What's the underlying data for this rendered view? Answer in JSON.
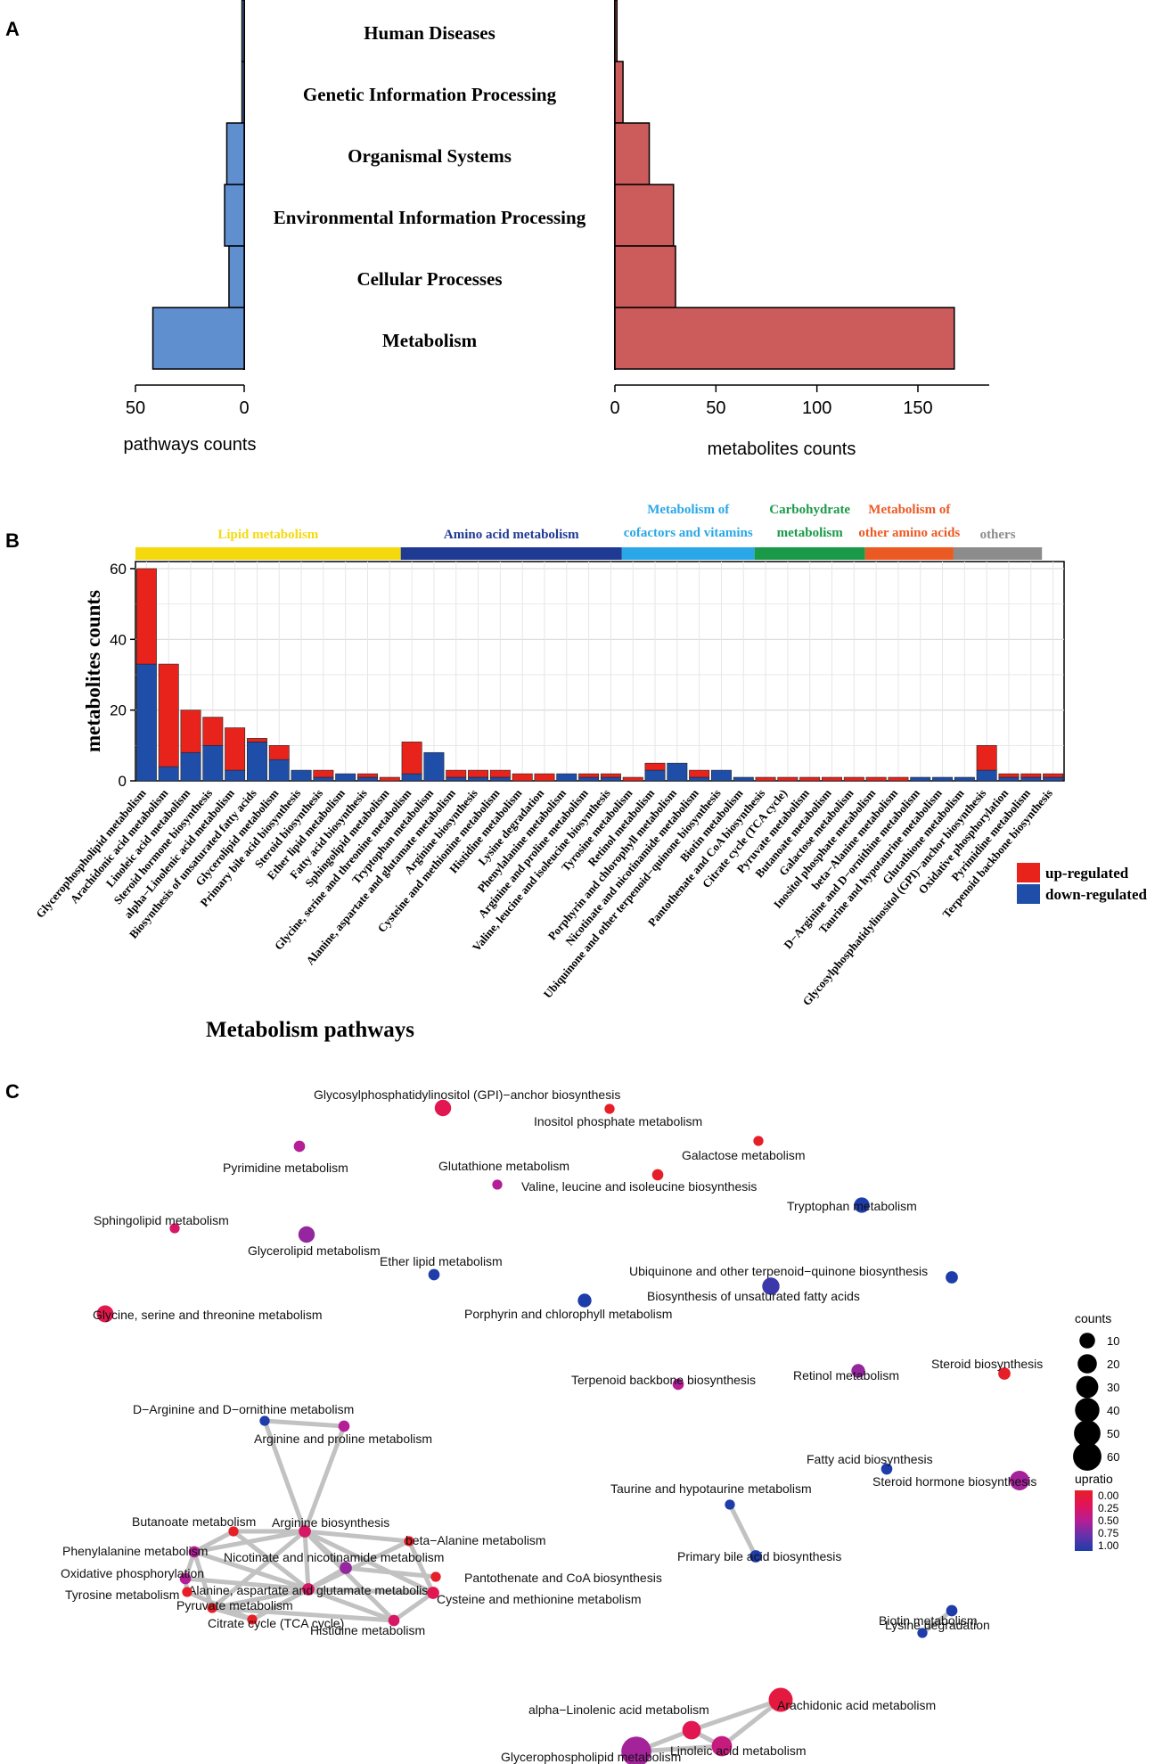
{
  "colors": {
    "blue_bar": "#5f8fcf",
    "red_bar": "#cc5b5b",
    "up": "#e8231c",
    "down": "#1f4ea8",
    "lipid": "#f5d90f",
    "amino": "#1f3a93",
    "cofactors": "#29a7e6",
    "carbohydrate": "#1a9a48",
    "other_amino": "#ec5a24",
    "others": "#8c8c8c",
    "edge": "#c2c2c2"
  },
  "chart_data": [
    {
      "panel": "A",
      "type": "bar",
      "orientation": "horizontal-mirrored",
      "categories": [
        "Human Diseases",
        "Genetic Information Processing",
        "Organismal Systems",
        "Environmental Information Processing",
        "Cellular Processes",
        "Metabolism"
      ],
      "series": [
        {
          "name": "pathways counts",
          "values": [
            1,
            1,
            8,
            9,
            7,
            42
          ],
          "xlim": [
            50,
            0
          ],
          "ticks": [
            "50",
            "0"
          ],
          "xlabel": "pathways counts"
        },
        {
          "name": "metabolites counts",
          "values": [
            1,
            4,
            17,
            29,
            30,
            168
          ],
          "xlim": [
            0,
            180
          ],
          "ticks": [
            "0",
            "50",
            "100",
            "150"
          ],
          "xlabel": "metabolites counts"
        }
      ]
    },
    {
      "panel": "B",
      "type": "bar",
      "stacked": true,
      "ylabel": "metabolites counts",
      "xlabel": "Metabolism pathways",
      "ylim": [
        0,
        62
      ],
      "yticks": [
        "0",
        "20",
        "40",
        "60"
      ],
      "legend": [
        "up-regulated",
        "down-regulated"
      ],
      "groups": [
        {
          "label": "Lipid metabolism",
          "label_lines": [
            "Lipid metabolism"
          ],
          "count": 12,
          "color_key": "lipid"
        },
        {
          "label": "Amino acid metabolism",
          "label_lines": [
            "Amino acid metabolism"
          ],
          "count": 10,
          "color_key": "amino"
        },
        {
          "label": "Metabolism of cofactors and vitamins",
          "label_lines": [
            "Metabolism of",
            "cofactors and vitamins"
          ],
          "count": 6,
          "color_key": "cofactors"
        },
        {
          "label": "Carbohydrate metabolism",
          "label_lines": [
            "Carbohydrate",
            "metabolism"
          ],
          "count": 5,
          "color_key": "carbohydrate"
        },
        {
          "label": "Metabolism of other amino acids",
          "label_lines": [
            "Metabolism of",
            "other amino acids"
          ],
          "count": 4,
          "color_key": "other_amino"
        },
        {
          "label": "others",
          "label_lines": [
            "others"
          ],
          "count": 4,
          "color_key": "others"
        }
      ],
      "categories": [
        "Glycerophospholipid metabolism",
        "Arachidonic acid metabolism",
        "Linoleic acid metabolism",
        "Steroid hormone biosynthesis",
        "alpha−Linolenic acid metabolism",
        "Biosynthesis of unsaturated fatty acids",
        "Glycerolipid metabolism",
        "Primary bile acid biosynthesis",
        "Steroid biosynthesis",
        "Ether lipid metabolism",
        "Fatty acid biosynthesis",
        "Sphingolipid metabolism",
        "Glycine, serine and threonine metabolism",
        "Tryptophan metabolism",
        "Alanine, aspartate and glutamate metabolism",
        "Arginine biosynthesis",
        "Cysteine and methionine metabolism",
        "Histidine metabolism",
        "Lysine degradation",
        "Phenylalanine metabolism",
        "Arginine and proline metabolism",
        "Valine, leucine and isoleucine biosynthesis",
        "Tyrosine metabolism",
        "Retinol metabolism",
        "Porphyrin and chlorophyll metabolism",
        "Nicotinate and nicotinamide metabolism",
        "Ubiquinone and other terpenoid−quinone biosynthesis",
        "Biotin metabolism",
        "Pantothenate and CoA biosynthesis",
        "Citrate cycle (TCA cycle)",
        "Pyruvate metabolism",
        "Butanoate metabolism",
        "Galactose metabolism",
        "Inositol phosphate metabolism",
        "beta−Alanine metabolism",
        "D−Arginine and D−ornithine metabolism",
        "Taurine and hypotaurine metabolism",
        "Glutathione metabolism",
        "Glycosylphosphatidylinositol (GPI)−anchor biosynthesis",
        "Oxidative phosphorylation",
        "Pyrimidine metabolism",
        "Terpenoid backbone biosynthesis"
      ],
      "series": [
        {
          "name": "down-regulated",
          "values": [
            33,
            4,
            8,
            10,
            3,
            11,
            6,
            3,
            1,
            2,
            1,
            0,
            2,
            8,
            1,
            1,
            1,
            0,
            0,
            2,
            1,
            1,
            0,
            3,
            5,
            1,
            3,
            1,
            0,
            0,
            0,
            0,
            0,
            0,
            0,
            1,
            1,
            1,
            3,
            1,
            1,
            1
          ]
        },
        {
          "name": "up-regulated",
          "values": [
            27,
            29,
            12,
            8,
            12,
            1,
            4,
            0,
            2,
            0,
            1,
            1,
            9,
            0,
            2,
            2,
            2,
            2,
            2,
            0,
            1,
            1,
            1,
            2,
            0,
            2,
            0,
            0,
            1,
            1,
            1,
            1,
            1,
            1,
            1,
            0,
            0,
            0,
            7,
            1,
            1,
            1
          ]
        }
      ]
    },
    {
      "panel": "C",
      "type": "network",
      "legend_size_title": "counts",
      "legend_size_values": [
        "10",
        "20",
        "30",
        "40",
        "50",
        "60"
      ],
      "legend_color_title": "upratio",
      "legend_color_values": [
        "0.00",
        "0.25",
        "0.50",
        "0.75",
        "1.00"
      ],
      "nodes": [
        {
          "id": 0,
          "label": "Glycosylphosphatidylinositol (GPI)−anchor biosynthesis",
          "counts": 10,
          "upratio": 0.2
        },
        {
          "id": 1,
          "label": "Inositol phosphate metabolism",
          "counts": 1,
          "upratio": 0.0
        },
        {
          "id": 2,
          "label": "Pyrimidine metabolism",
          "counts": 2,
          "upratio": 0.5
        },
        {
          "id": 3,
          "label": "Galactose metabolism",
          "counts": 1,
          "upratio": 0.0
        },
        {
          "id": 4,
          "label": "Glutathione metabolism",
          "counts": 1,
          "upratio": 0.5
        },
        {
          "id": 5,
          "label": "Valine, leucine and isoleucine biosynthesis",
          "counts": 2,
          "upratio": 0.0
        },
        {
          "id": 6,
          "label": "Tryptophan metabolism",
          "counts": 8,
          "upratio": 1.0
        },
        {
          "id": 7,
          "label": "Sphingolipid metabolism",
          "counts": 1,
          "upratio": 0.3
        },
        {
          "id": 8,
          "label": "Glycerolipid metabolism",
          "counts": 10,
          "upratio": 0.6
        },
        {
          "id": 9,
          "label": "Ether lipid metabolism",
          "counts": 2,
          "upratio": 1.0
        },
        {
          "id": 10,
          "label": "Ubiquinone and other terpenoid−quinone biosynthesis",
          "counts": 3,
          "upratio": 1.0
        },
        {
          "id": 11,
          "label": "Biosynthesis of unsaturated fatty acids",
          "counts": 12,
          "upratio": 0.9
        },
        {
          "id": 12,
          "label": "Porphyrin and chlorophyll metabolism",
          "counts": 5,
          "upratio": 1.0
        },
        {
          "id": 13,
          "label": "Glycine, serine and threonine metabolism",
          "counts": 11,
          "upratio": 0.18
        },
        {
          "id": 14,
          "label": "Terpenoid backbone biosynthesis",
          "counts": 2,
          "upratio": 0.5
        },
        {
          "id": 15,
          "label": "Retinol metabolism",
          "counts": 5,
          "upratio": 0.6
        },
        {
          "id": 16,
          "label": "Steroid biosynthesis",
          "counts": 3,
          "upratio": 0.0
        },
        {
          "id": 17,
          "label": "D−Arginine and D−ornithine metabolism",
          "counts": 1,
          "upratio": 1.0
        },
        {
          "id": 18,
          "label": "Arginine and proline metabolism",
          "counts": 2,
          "upratio": 0.5
        },
        {
          "id": 19,
          "label": "Fatty acid biosynthesis",
          "counts": 2,
          "upratio": 1.0
        },
        {
          "id": 20,
          "label": "Steroid hormone biosynthesis",
          "counts": 18,
          "upratio": 0.55
        },
        {
          "id": 21,
          "label": "Taurine and hypotaurine metabolism",
          "counts": 1,
          "upratio": 1.0
        },
        {
          "id": 22,
          "label": "Primary bile acid biosynthesis",
          "counts": 3,
          "upratio": 1.0
        },
        {
          "id": 23,
          "label": "Butanoate metabolism",
          "counts": 1,
          "upratio": 0.0
        },
        {
          "id": 24,
          "label": "Arginine biosynthesis",
          "counts": 3,
          "upratio": 0.3
        },
        {
          "id": 25,
          "label": "beta−Alanine metabolism",
          "counts": 1,
          "upratio": 0.0
        },
        {
          "id": 26,
          "label": "Phenylalanine metabolism",
          "counts": 2,
          "upratio": 0.5
        },
        {
          "id": 27,
          "label": "Nicotinate and nicotinamide metabolism",
          "counts": 3,
          "upratio": 0.6
        },
        {
          "id": 28,
          "label": "Oxidative phosphorylation",
          "counts": 2,
          "upratio": 0.5
        },
        {
          "id": 29,
          "label": "Pantothenate and CoA biosynthesis",
          "counts": 1,
          "upratio": 0.0
        },
        {
          "id": 30,
          "label": "Alanine, aspartate and glutamate metabolism",
          "counts": 3,
          "upratio": 0.3
        },
        {
          "id": 31,
          "label": "Tyrosine metabolism",
          "counts": 1,
          "upratio": 0.0
        },
        {
          "id": 32,
          "label": "Cysteine and methionine metabolism",
          "counts": 3,
          "upratio": 0.2
        },
        {
          "id": 33,
          "label": "Pyruvate metabolism",
          "counts": 1,
          "upratio": 0.0
        },
        {
          "id": 34,
          "label": "Histidine metabolism",
          "counts": 2,
          "upratio": 0.3
        },
        {
          "id": 35,
          "label": "Citrate cycle (TCA cycle)",
          "counts": 1,
          "upratio": 0.0
        },
        {
          "id": 36,
          "label": "Lysine degradation",
          "counts": 2,
          "upratio": 1.0
        },
        {
          "id": 37,
          "label": "Biotin metabolism",
          "counts": 1,
          "upratio": 1.0
        },
        {
          "id": 38,
          "label": "alpha−Linolenic acid metabolism",
          "counts": 15,
          "upratio": 0.2
        },
        {
          "id": 39,
          "label": "Arachidonic acid metabolism",
          "counts": 33,
          "upratio": 0.12
        },
        {
          "id": 40,
          "label": "Linoleic acid metabolism",
          "counts": 20,
          "upratio": 0.4
        },
        {
          "id": 41,
          "label": "Glycerophospholipid metabolism",
          "counts": 60,
          "upratio": 0.55
        }
      ],
      "edges": [
        [
          17,
          18
        ],
        [
          17,
          24
        ],
        [
          18,
          24
        ],
        [
          23,
          24
        ],
        [
          23,
          30
        ],
        [
          24,
          30
        ],
        [
          24,
          27
        ],
        [
          24,
          25
        ],
        [
          24,
          26
        ],
        [
          24,
          33
        ],
        [
          24,
          32
        ],
        [
          24,
          34
        ],
        [
          26,
          30
        ],
        [
          26,
          33
        ],
        [
          26,
          28
        ],
        [
          28,
          30
        ],
        [
          28,
          31
        ],
        [
          30,
          33
        ],
        [
          30,
          35
        ],
        [
          33,
          35
        ],
        [
          30,
          34
        ],
        [
          30,
          32
        ],
        [
          32,
          34
        ],
        [
          25,
          32
        ],
        [
          25,
          30
        ],
        [
          27,
          30
        ],
        [
          27,
          29
        ],
        [
          33,
          34
        ],
        [
          31,
          35
        ],
        [
          23,
          26
        ],
        [
          21,
          22
        ],
        [
          36,
          37
        ],
        [
          38,
          39
        ],
        [
          38,
          40
        ],
        [
          38,
          41
        ],
        [
          40,
          41
        ],
        [
          39,
          40
        ]
      ]
    }
  ],
  "panel_labels": {
    "a": "A",
    "b": "B",
    "c": "C"
  }
}
